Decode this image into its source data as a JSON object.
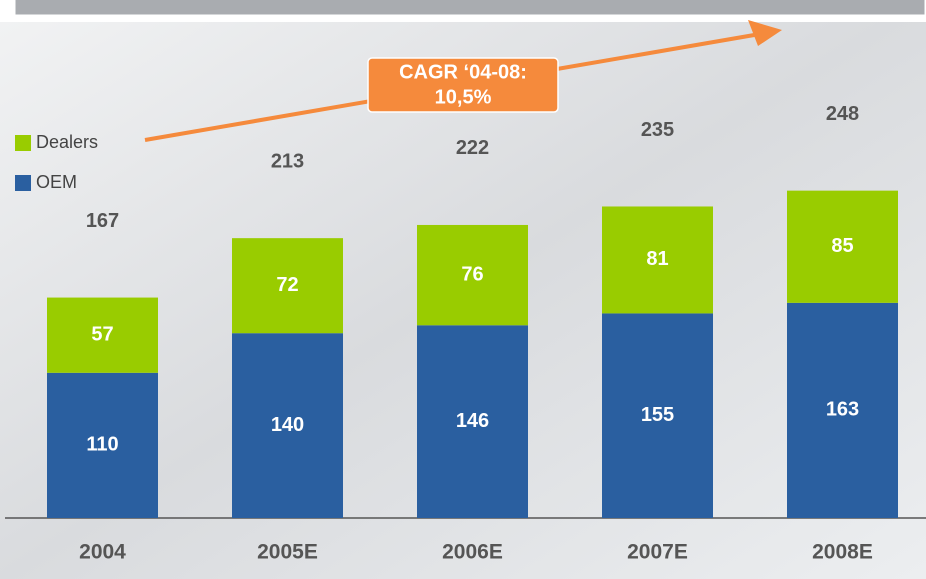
{
  "chart_data": {
    "type": "stacked_bar",
    "categories": [
      "2004",
      "2005E",
      "2006E",
      "2007E",
      "2008E"
    ],
    "series": [
      {
        "name": "OEM",
        "color": "#2a5fa0",
        "values": [
          110,
          140,
          146,
          155,
          163
        ]
      },
      {
        "name": "Dealers",
        "color": "#99cc00",
        "values": [
          57,
          72,
          76,
          81,
          85
        ]
      }
    ],
    "totals": [
      167,
      213,
      222,
      235,
      248
    ],
    "annotation": {
      "lines": [
        "CAGR ‘04-08:",
        "10,5%"
      ],
      "color": "#f58a3c"
    }
  }
}
